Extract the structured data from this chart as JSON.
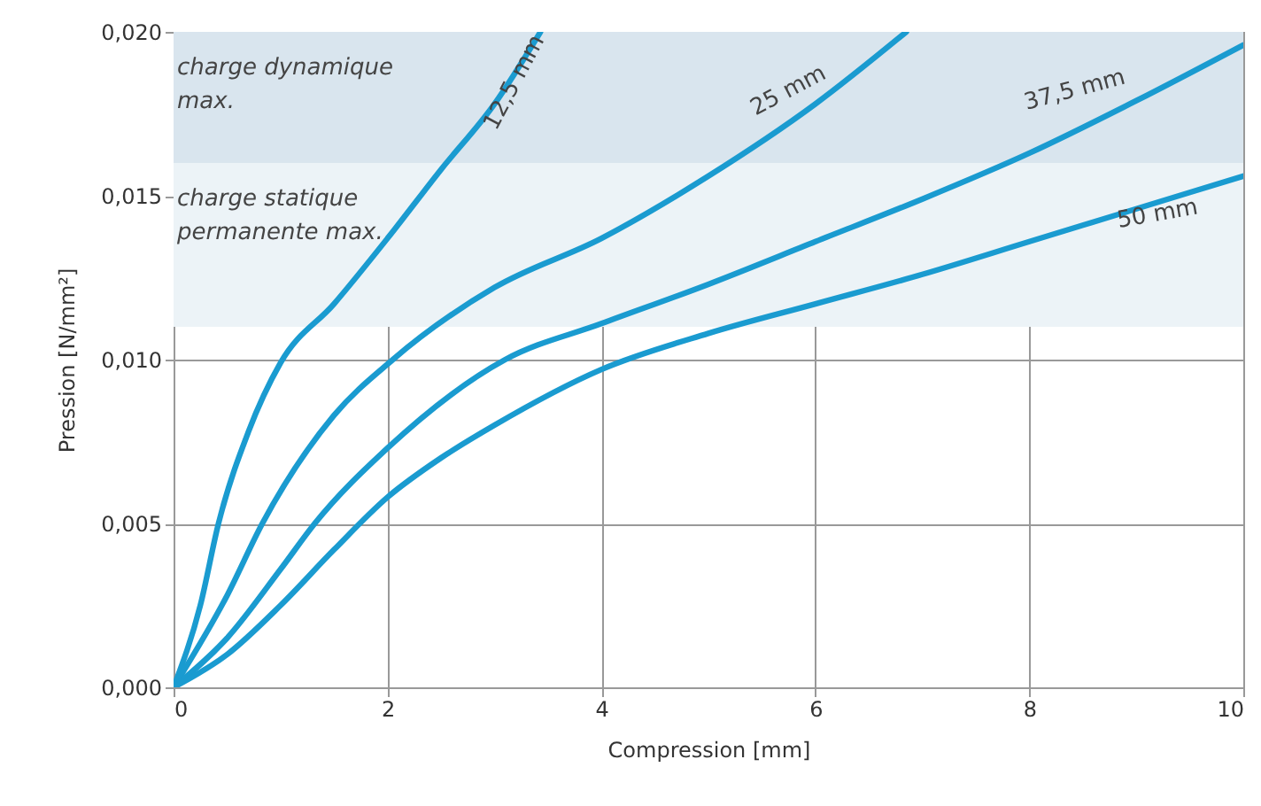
{
  "chart_data": {
    "type": "line",
    "xlabel": "Compression [mm]",
    "ylabel": "Pression [N/mm²]",
    "xlim": [
      0,
      10
    ],
    "xticks": [
      0,
      2,
      4,
      6,
      8,
      10
    ],
    "ylim": [
      0,
      0.02
    ],
    "yticks": [
      {
        "value": 0,
        "label": "0,000"
      },
      {
        "value": 0.005,
        "label": "0,005"
      },
      {
        "value": 0.01,
        "label": "0,010"
      },
      {
        "value": 0.015,
        "label": "0,015"
      },
      {
        "value": 0.02,
        "label": "0,020"
      }
    ],
    "grid": true,
    "marker": "none",
    "line_style": "solid",
    "bands": [
      {
        "axis": "y",
        "from": 0.016,
        "to": 0.02,
        "label": "charge dynamique max.",
        "color": "#d9e5ee"
      },
      {
        "axis": "y",
        "from": 0.011,
        "to": 0.016,
        "label": "charge statique permanente max.",
        "color": "#ecf3f7"
      }
    ],
    "series": [
      {
        "name": "12,5 mm",
        "color": "#1a9bd0",
        "x": [
          0,
          0.25,
          0.42,
          0.7,
          1,
          1.5,
          2,
          2.5,
          3,
          3.43
        ],
        "values": [
          0,
          0.0025,
          0.005,
          0.0078,
          0.0099,
          0.0117,
          0.0137,
          0.0158,
          0.0178,
          0.02
        ]
      },
      {
        "name": "25 mm",
        "color": "#1a9bd0",
        "x": [
          0,
          0.5,
          0.83,
          1.5,
          2.05,
          3,
          4,
          5,
          6,
          6.85
        ],
        "values": [
          0,
          0.0028,
          0.005,
          0.0083,
          0.01,
          0.0122,
          0.0137,
          0.0156,
          0.0178,
          0.02
        ]
      },
      {
        "name": "37,5 mm",
        "color": "#1a9bd0",
        "x": [
          0,
          0.5,
          1,
          1.32,
          2,
          3.1,
          4,
          5,
          6,
          7,
          8,
          9,
          10
        ],
        "values": [
          0,
          0.0015,
          0.0036,
          0.005,
          0.0073,
          0.01,
          0.0111,
          0.0123,
          0.0136,
          0.0149,
          0.0163,
          0.0179,
          0.0196
        ]
      },
      {
        "name": "50 mm",
        "color": "#1a9bd0",
        "x": [
          0,
          0.5,
          1,
          1.5,
          2,
          2.5,
          3,
          4,
          5,
          6,
          7,
          8,
          9,
          10
        ],
        "values": [
          0,
          0.001,
          0.0025,
          0.0042,
          0.0058,
          0.007,
          0.008,
          0.0097,
          0.0108,
          0.0117,
          0.0126,
          0.0136,
          0.0146,
          0.0156
        ]
      }
    ]
  }
}
